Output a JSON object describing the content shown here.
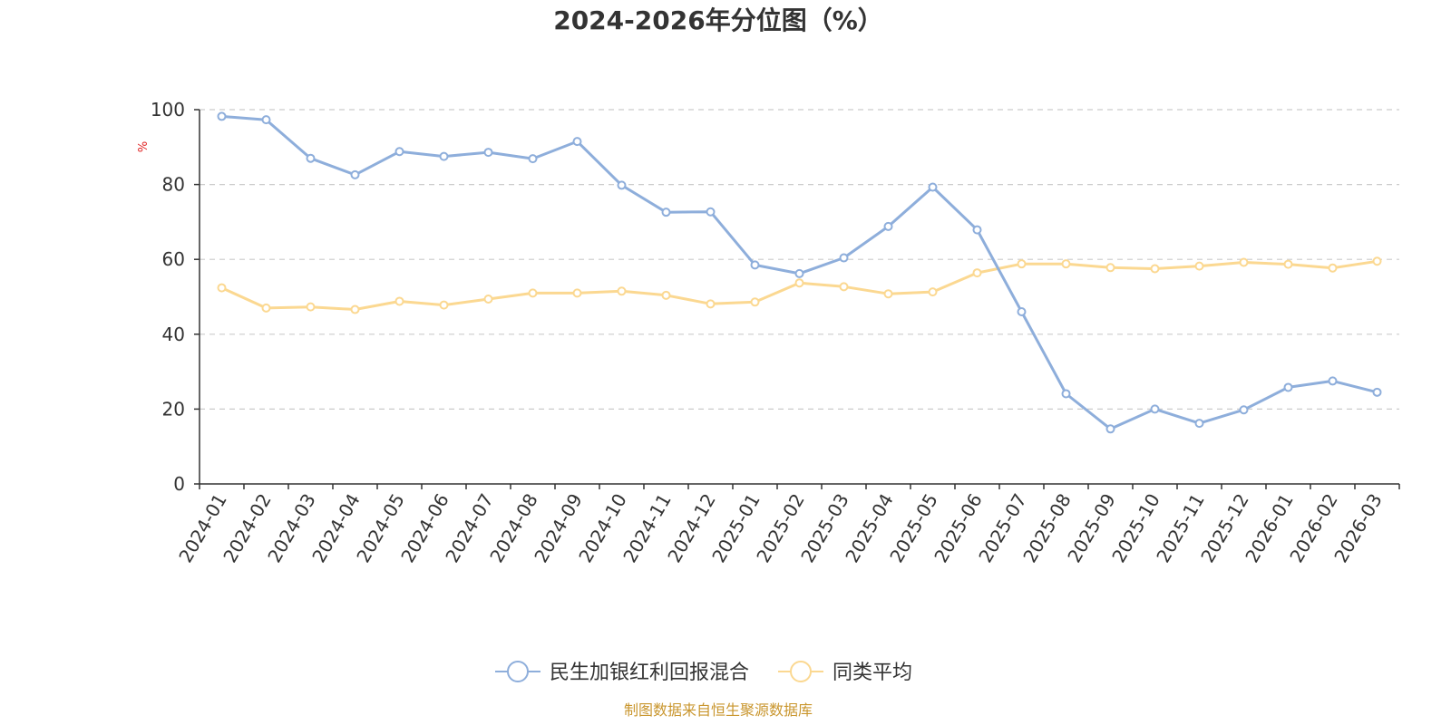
{
  "chart_data": {
    "type": "line",
    "title": "2024-2026年分位图（%）",
    "ylabel": "%",
    "ylim": [
      0,
      100
    ],
    "yticks": [
      0,
      20,
      40,
      60,
      80,
      100
    ],
    "grid": true,
    "legend_position": "bottom",
    "categories": [
      "2024-01",
      "2024-02",
      "2024-03",
      "2024-04",
      "2024-05",
      "2024-06",
      "2024-07",
      "2024-08",
      "2024-09",
      "2024-10",
      "2024-11",
      "2024-12",
      "2025-01",
      "2025-02",
      "2025-03",
      "2025-04",
      "2025-05",
      "2025-06",
      "2025-07",
      "2025-08",
      "2025-09",
      "2025-10",
      "2025-11",
      "2025-12",
      "2026-01",
      "2026-02",
      "2026-03"
    ],
    "series": [
      {
        "name": "民生加银红利回报混合",
        "color": "#8eaedb",
        "values": [
          98.2,
          97.3,
          87.0,
          82.6,
          88.8,
          87.5,
          88.6,
          86.9,
          91.5,
          79.8,
          72.6,
          72.7,
          58.5,
          56.2,
          60.4,
          68.8,
          79.3,
          67.9,
          46.0,
          24.1,
          14.7,
          20.0,
          16.2,
          19.8,
          25.8,
          27.5,
          24.5
        ]
      },
      {
        "name": "同类平均",
        "color": "#fbd891",
        "values": [
          52.4,
          47.0,
          47.3,
          46.6,
          48.8,
          47.8,
          49.4,
          51.0,
          51.0,
          51.5,
          50.4,
          48.1,
          48.6,
          53.7,
          52.7,
          50.8,
          51.3,
          56.4,
          58.8,
          58.8,
          57.8,
          57.5,
          58.2,
          59.2,
          58.7,
          57.7,
          59.5
        ]
      }
    ],
    "source": "制图数据来自恒生聚源数据库",
    "source_color": "#c9962e",
    "unit_color": "#e02020"
  }
}
